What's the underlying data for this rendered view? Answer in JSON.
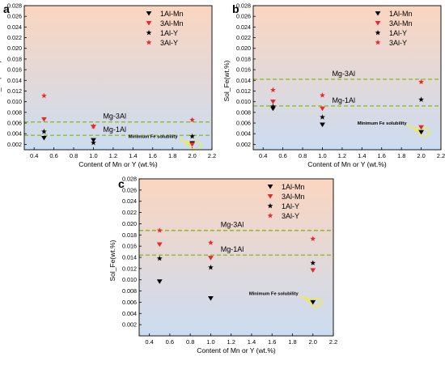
{
  "colors": {
    "bg_top": "#fbd5bf",
    "bg_bottom": "#cbdcf1",
    "red": "#e8282a",
    "black": "#000000",
    "dash_line": "#8fba2e",
    "arrow": "#f2ee3a"
  },
  "chart_data": [
    {
      "type": "scatter",
      "panel_label": "a",
      "xlabel": "Content of Mn or Y (wt.%)",
      "ylabel": "Sol_Fe(wt.%)",
      "xlim": [
        0.3,
        2.2
      ],
      "ylim": [
        0.001,
        0.028
      ],
      "xticks": [
        0.4,
        0.6,
        0.8,
        1.0,
        1.2,
        1.4,
        1.6,
        1.8,
        2.0,
        2.2
      ],
      "yticks": [
        0.002,
        0.004,
        0.006,
        0.008,
        0.01,
        0.012,
        0.014,
        0.016,
        0.018,
        0.02,
        0.022,
        0.024,
        0.026,
        0.028
      ],
      "grid": false,
      "legend_position": "top-right",
      "reference_lines": [
        {
          "label": "Mg-3Al",
          "y": 0.0062
        },
        {
          "label": "Mg-1Al",
          "y": 0.0037
        }
      ],
      "annotation": "Minimum Fe solubility",
      "annotation_point": [
        2.0,
        0.0018
      ],
      "series": [
        {
          "name": "1Al-Mn",
          "marker": "triangle-down",
          "color": "black",
          "x": [
            0.5,
            1.0,
            2.0
          ],
          "y": [
            0.0032,
            0.0028,
            0.0022
          ]
        },
        {
          "name": "3Al-Mn",
          "marker": "triangle-down",
          "color": "red",
          "x": [
            0.5,
            1.0,
            2.0
          ],
          "y": [
            0.0067,
            0.0053,
            0.002
          ]
        },
        {
          "name": "1Al-Y",
          "marker": "star",
          "color": "black",
          "x": [
            0.5,
            1.0,
            2.0
          ],
          "y": [
            0.0044,
            0.0023,
            0.0035
          ]
        },
        {
          "name": "3Al-Y",
          "marker": "star",
          "color": "red",
          "x": [
            0.5,
            1.0,
            2.0
          ],
          "y": [
            0.0111,
            0.0054,
            0.0066
          ]
        }
      ]
    },
    {
      "type": "scatter",
      "panel_label": "b",
      "xlabel": "Content of Mn or Y (wt.%)",
      "ylabel": "Sol_Fe(wt.%)",
      "xlim": [
        0.3,
        2.2
      ],
      "ylim": [
        0.001,
        0.028
      ],
      "xticks": [
        0.4,
        0.6,
        0.8,
        1.0,
        1.2,
        1.4,
        1.6,
        1.8,
        2.0,
        2.2
      ],
      "yticks": [
        0.002,
        0.004,
        0.006,
        0.008,
        0.01,
        0.012,
        0.014,
        0.016,
        0.018,
        0.02,
        0.022,
        0.024,
        0.026,
        0.028
      ],
      "grid": false,
      "legend_position": "top-right",
      "reference_lines": [
        {
          "label": "Mg-3Al",
          "y": 0.0142
        },
        {
          "label": "Mg-1Al",
          "y": 0.0092
        }
      ],
      "annotation": "Minimum Fe solubility",
      "annotation_point": [
        2.0,
        0.0043
      ],
      "series": [
        {
          "name": "1Al-Mn",
          "marker": "triangle-down",
          "color": "black",
          "x": [
            0.5,
            1.0,
            2.0
          ],
          "y": [
            0.0087,
            0.0057,
            0.0043
          ]
        },
        {
          "name": "3Al-Mn",
          "marker": "triangle-down",
          "color": "red",
          "x": [
            0.5,
            1.0,
            2.0
          ],
          "y": [
            0.01,
            0.0087,
            0.0052
          ]
        },
        {
          "name": "1Al-Y",
          "marker": "star",
          "color": "black",
          "x": [
            0.5,
            1.0,
            2.0
          ],
          "y": [
            0.0091,
            0.0071,
            0.0104
          ]
        },
        {
          "name": "3Al-Y",
          "marker": "star",
          "color": "red",
          "x": [
            0.5,
            1.0,
            2.0
          ],
          "y": [
            0.0122,
            0.0112,
            0.0137
          ]
        }
      ]
    },
    {
      "type": "scatter",
      "panel_label": "c",
      "xlabel": "Content of Mn or Y (wt.%)",
      "ylabel": "Sol_Fe(wt.%)",
      "xlim": [
        0.3,
        2.2
      ],
      "ylim": [
        0.0,
        0.028
      ],
      "xticks": [
        0.4,
        0.6,
        0.8,
        1.0,
        1.2,
        1.4,
        1.6,
        1.8,
        2.0,
        2.2
      ],
      "yticks": [
        0.002,
        0.004,
        0.006,
        0.008,
        0.01,
        0.012,
        0.014,
        0.016,
        0.018,
        0.02,
        0.022,
        0.024,
        0.026,
        0.028
      ],
      "grid": false,
      "legend_position": "top-right",
      "reference_lines": [
        {
          "label": "Mg-3Al",
          "y": 0.0188
        },
        {
          "label": "Mg-1Al",
          "y": 0.0144
        }
      ],
      "annotation": "Minimum Fe solubility",
      "annotation_point": [
        2.0,
        0.006
      ],
      "series": [
        {
          "name": "1Al-Mn",
          "marker": "triangle-down",
          "color": "black",
          "x": [
            0.5,
            1.0,
            2.0
          ],
          "y": [
            0.0097,
            0.0067,
            0.006
          ]
        },
        {
          "name": "3Al-Mn",
          "marker": "triangle-down",
          "color": "red",
          "x": [
            0.5,
            1.0,
            2.0
          ],
          "y": [
            0.0163,
            0.0139,
            0.0117
          ]
        },
        {
          "name": "1Al-Y",
          "marker": "star",
          "color": "black",
          "x": [
            0.5,
            1.0,
            2.0
          ],
          "y": [
            0.0138,
            0.0122,
            0.013
          ]
        },
        {
          "name": "3Al-Y",
          "marker": "star",
          "color": "red",
          "x": [
            0.5,
            1.0,
            2.0
          ],
          "y": [
            0.0188,
            0.0166,
            0.0173
          ]
        }
      ]
    }
  ]
}
